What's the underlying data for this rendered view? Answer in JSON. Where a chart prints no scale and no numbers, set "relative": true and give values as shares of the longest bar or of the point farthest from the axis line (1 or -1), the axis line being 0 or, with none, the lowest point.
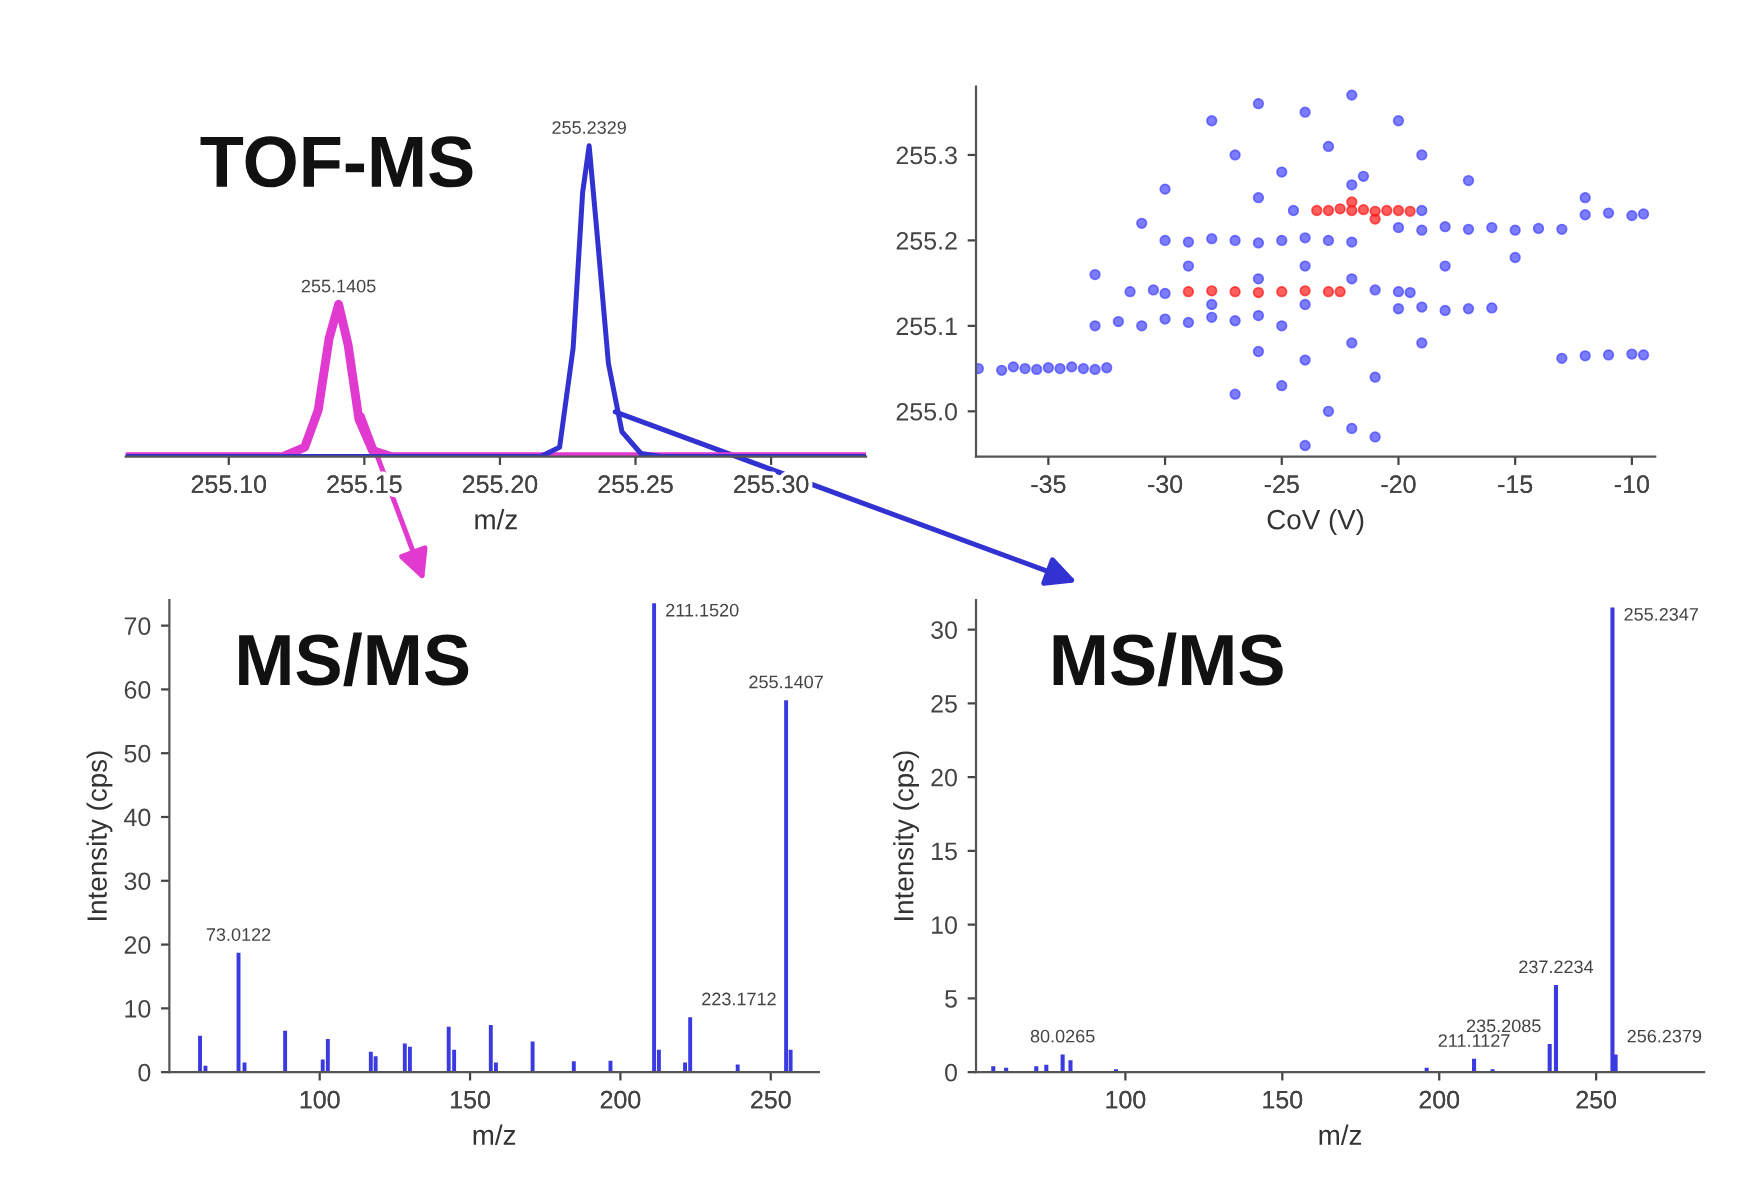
{
  "chart_data": [
    {
      "type": "line",
      "title": "TOF-MS",
      "xlabel": "m/z",
      "relative": true,
      "tick_labels": "x",
      "grid": false,
      "xlim": [
        255.062,
        255.335
      ],
      "xticks": [
        {
          "value": 255.1,
          "label": "255.10"
        },
        {
          "value": 255.15,
          "label": "255.15"
        },
        {
          "value": 255.2,
          "label": "255.20"
        },
        {
          "value": 255.25,
          "label": "255.25"
        },
        {
          "value": 255.3,
          "label": "255.30"
        }
      ],
      "series": [
        {
          "color": "#e03ad0",
          "x": [
            255.062,
            255.12,
            255.128,
            255.133,
            255.137,
            255.1405,
            255.144,
            255.148,
            255.153,
            255.16,
            255.335
          ],
          "values": [
            0,
            0,
            0.03,
            0.15,
            0.38,
            0.49,
            0.36,
            0.12,
            0.02,
            0,
            0
          ]
        },
        {
          "color": "#3232d2",
          "x": [
            255.062,
            255.215,
            255.222,
            255.227,
            255.2305,
            255.2329,
            255.236,
            255.24,
            255.245,
            255.252,
            255.26,
            255.335
          ],
          "values": [
            0,
            0,
            0.03,
            0.35,
            0.85,
            1.0,
            0.7,
            0.3,
            0.08,
            0.01,
            0,
            0
          ]
        }
      ],
      "annotations": [
        {
          "text": "255.1405",
          "x": 255.1405,
          "y": 0.49
        },
        {
          "text": "255.2329",
          "x": 255.2329,
          "y": 1.0
        }
      ]
    },
    {
      "type": "scatter",
      "xlabel": "CoV (V)",
      "grid": false,
      "marker": "circle",
      "xlim": [
        -38.1,
        -9
      ],
      "ylim": [
        254.947,
        255.38
      ],
      "xticks": [
        -35,
        -30,
        -25,
        -20,
        -15,
        -10
      ],
      "yticks": [
        {
          "value": 255.0,
          "label": "255.0"
        },
        {
          "value": 255.1,
          "label": "255.1"
        },
        {
          "value": 255.2,
          "label": "255.2"
        },
        {
          "value": 255.3,
          "label": "255.3"
        }
      ],
      "series": [
        {
          "color": "#4444ff",
          "x": [
            -38,
            -37,
            -36.5,
            -36,
            -35.5,
            -35,
            -34.5,
            -34,
            -33.5,
            -33,
            -32.5,
            -33,
            -32,
            -31,
            -30,
            -29,
            -28,
            -27,
            -26,
            -25,
            -31.5,
            -30.5,
            -30,
            -21,
            -20,
            -19.5,
            -28,
            -26,
            -24,
            -22,
            -20,
            -19,
            -18,
            -17,
            -16,
            -30,
            -29,
            -28,
            -27,
            -26,
            -25,
            -24,
            -23,
            -22,
            -20,
            -19,
            -18,
            -17,
            -16,
            -15,
            -14,
            -13,
            -12,
            -11,
            -10,
            -9.5,
            -13,
            -12,
            -11,
            -10,
            -9.5,
            -24.5,
            -19,
            -22,
            -21.5,
            -28,
            -26,
            -24,
            -22,
            -20,
            -27,
            -23,
            -19,
            -25,
            -30,
            -17,
            -26,
            -29,
            -24,
            -18,
            -22,
            -24,
            -21,
            -25,
            -23,
            -22,
            -24,
            -21,
            -27,
            -19,
            -31,
            -33,
            -15,
            -12,
            -26
          ],
          "values": [
            255.05,
            255.048,
            255.052,
            255.05,
            255.049,
            255.051,
            255.05,
            255.052,
            255.05,
            255.049,
            255.051,
            255.1,
            255.105,
            255.1,
            255.108,
            255.104,
            255.11,
            255.106,
            255.112,
            255.1,
            255.14,
            255.142,
            255.138,
            255.142,
            255.14,
            255.139,
            255.125,
            255.155,
            255.125,
            255.155,
            255.12,
            255.122,
            255.118,
            255.12,
            255.121,
            255.2,
            255.198,
            255.202,
            255.2,
            255.197,
            255.2,
            255.203,
            255.2,
            255.198,
            255.215,
            255.212,
            255.216,
            255.213,
            255.215,
            255.212,
            255.214,
            255.213,
            255.23,
            255.232,
            255.229,
            255.231,
            255.062,
            255.065,
            255.066,
            255.067,
            255.066,
            255.235,
            255.235,
            255.265,
            255.275,
            255.34,
            255.36,
            255.35,
            255.37,
            255.34,
            255.3,
            255.31,
            255.3,
            255.28,
            255.26,
            255.27,
            255.25,
            255.17,
            255.17,
            255.17,
            255.08,
            255.06,
            255.04,
            255.03,
            255.0,
            254.98,
            254.96,
            254.97,
            255.02,
            255.08,
            255.22,
            255.16,
            255.18,
            255.25,
            255.07
          ]
        },
        {
          "color": "#ff1a1a",
          "x": [
            -23.5,
            -23,
            -22.5,
            -22,
            -21.5,
            -21,
            -20.5,
            -20,
            -19.5,
            -22,
            -21,
            -29,
            -28,
            -27,
            -26,
            -25,
            -24,
            -23,
            -22.5
          ],
          "values": [
            255.235,
            255.235,
            255.237,
            255.235,
            255.236,
            255.234,
            255.235,
            255.235,
            255.234,
            255.245,
            255.225,
            255.14,
            255.141,
            255.14,
            255.139,
            255.14,
            255.141,
            255.14,
            255.14
          ]
        }
      ]
    },
    {
      "type": "bar",
      "title": "MS/MS",
      "xlabel": "m/z",
      "ylabel": "Intensity (cps)",
      "grid": false,
      "xlim": [
        50,
        266
      ],
      "ylim": [
        0,
        74
      ],
      "xticks": [
        100,
        150,
        200,
        250
      ],
      "yticks": [
        0,
        10,
        20,
        30,
        40,
        50,
        60,
        70
      ],
      "series": [
        {
          "color": "#3a3ae0",
          "x": [
            60.2,
            62,
            73.0,
            75,
            88.5,
            101,
            102.7,
            117,
            118.6,
            128.3,
            130,
            142.9,
            144.7,
            156.9,
            158.6,
            170.8,
            184.5,
            196.7,
            211.2,
            212.8,
            221.5,
            223.2,
            239,
            255.1,
            256.6
          ],
          "values": [
            5.7,
            1.0,
            18.7,
            1.5,
            6.5,
            2.0,
            5.2,
            3.2,
            2.5,
            4.5,
            4.0,
            7.1,
            3.5,
            7.4,
            1.5,
            4.8,
            1.7,
            1.8,
            73.5,
            3.5,
            1.5,
            8.6,
            1.2,
            58.3,
            3.5
          ]
        }
      ],
      "annotations": [
        {
          "text": "73.0122",
          "x": 73.0,
          "y": 18.7
        },
        {
          "text": "211.1520",
          "x": 211.2,
          "y": 73.5
        },
        {
          "text": "223.1712",
          "x": 223.2,
          "y": 8.6
        },
        {
          "text": "255.1407",
          "x": 255.1,
          "y": 58.3
        }
      ]
    },
    {
      "type": "bar",
      "title": "MS/MS",
      "xlabel": "m/z",
      "ylabel": "Intensity (cps)",
      "grid": false,
      "xlim": [
        52.4,
        284.4
      ],
      "ylim": [
        0,
        32
      ],
      "xticks": [
        100,
        150,
        200,
        250
      ],
      "yticks": [
        0,
        5,
        10,
        15,
        20,
        25,
        30
      ],
      "series": [
        {
          "color": "#3a3ae0",
          "x": [
            57.9,
            62,
            71.6,
            74.8,
            80.0,
            82.5,
            97,
            196,
            211.1,
            217,
            235.2,
            237.2,
            255.2,
            256.2
          ],
          "values": [
            0.4,
            0.3,
            0.4,
            0.5,
            1.2,
            0.8,
            0.2,
            0.3,
            0.9,
            0.2,
            1.9,
            5.9,
            31.5,
            1.2
          ]
        }
      ],
      "annotations": [
        {
          "text": "80.0265",
          "x": 80.0,
          "y": 1.2
        },
        {
          "text": "211.1127",
          "x": 211.1,
          "y": 0.9
        },
        {
          "text": "235.2085",
          "x": 235.2,
          "y": 1.9
        },
        {
          "text": "237.2234",
          "x": 237.2,
          "y": 5.9
        },
        {
          "text": "255.2347",
          "x": 255.2,
          "y": 31.5
        },
        {
          "text": "256.2379",
          "x": 256.2,
          "y": 1.2
        }
      ]
    }
  ]
}
